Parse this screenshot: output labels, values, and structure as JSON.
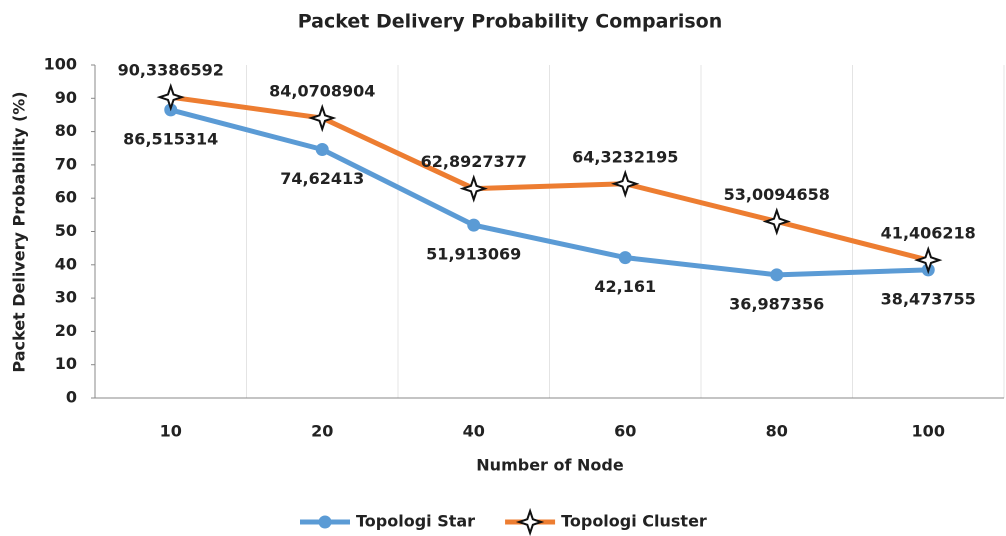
{
  "chart_data": {
    "type": "line",
    "title": "Packet Delivery Probability  Comparison",
    "xlabel": "Number of Node",
    "ylabel": "Packet Delivery Probability (%)",
    "categories": [
      "10",
      "20",
      "40",
      "60",
      "80",
      "100"
    ],
    "ylim": [
      0,
      100
    ],
    "yticks": [
      0,
      10,
      20,
      30,
      40,
      50,
      60,
      70,
      80,
      90,
      100
    ],
    "legend": "bottom",
    "series": [
      {
        "name": "Topologi Star",
        "color": "#5b9bd5",
        "values": [
          86.515314,
          74.62413,
          51.913069,
          42.161,
          36.987356,
          38.473755
        ],
        "value_labels": [
          "86,515314",
          "74,62413",
          "51,913069",
          "42,161",
          "36,987356",
          "38,473755"
        ]
      },
      {
        "name": "Topologi Cluster",
        "color": "#ed7d31",
        "values": [
          90.3386592,
          84.0708904,
          62.8927377,
          64.3232195,
          53.0094658,
          41.406218
        ],
        "value_labels": [
          "90,3386592",
          "84,0708904",
          "62,8927377",
          "64,3232195",
          "53,0094658",
          "41,406218"
        ]
      }
    ]
  }
}
